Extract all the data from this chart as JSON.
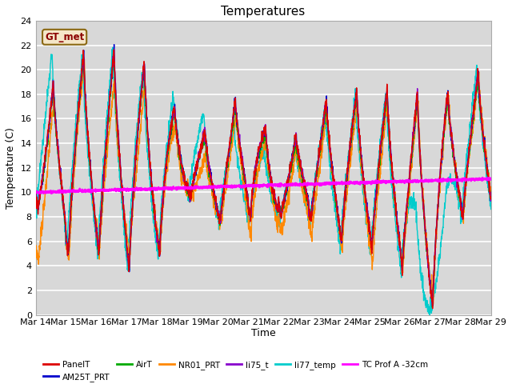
{
  "title": "Temperatures",
  "xlabel": "Time",
  "ylabel": "Temperature (C)",
  "ylim": [
    0,
    24
  ],
  "xlim": [
    0,
    15
  ],
  "xtick_labels": [
    "Mar 14",
    "Mar 15",
    "Mar 16",
    "Mar 17",
    "Mar 18",
    "Mar 19",
    "Mar 20",
    "Mar 21",
    "Mar 22",
    "Mar 23",
    "Mar 24",
    "Mar 25",
    "Mar 26",
    "Mar 27",
    "Mar 28",
    "Mar 29"
  ],
  "xtick_positions": [
    0,
    1,
    2,
    3,
    4,
    5,
    6,
    7,
    8,
    9,
    10,
    11,
    12,
    13,
    14,
    15
  ],
  "bg_color": "#d8d8d8",
  "grid_color": "white",
  "annotation_text": "GT_met",
  "annotation_color": "#8B0000",
  "annotation_bg": "#f5e6c8",
  "annotation_edge": "#8B6914",
  "series_PanelT_color": "#dd0000",
  "series_AM25T_color": "#0000cc",
  "series_AirT_color": "#00aa00",
  "series_NR01_color": "#ff8800",
  "series_li75_color": "#8800cc",
  "series_li77_color": "#00cccc",
  "series_TC_color": "#ff00ff",
  "lw": 1.0,
  "tc_lw": 1.8
}
